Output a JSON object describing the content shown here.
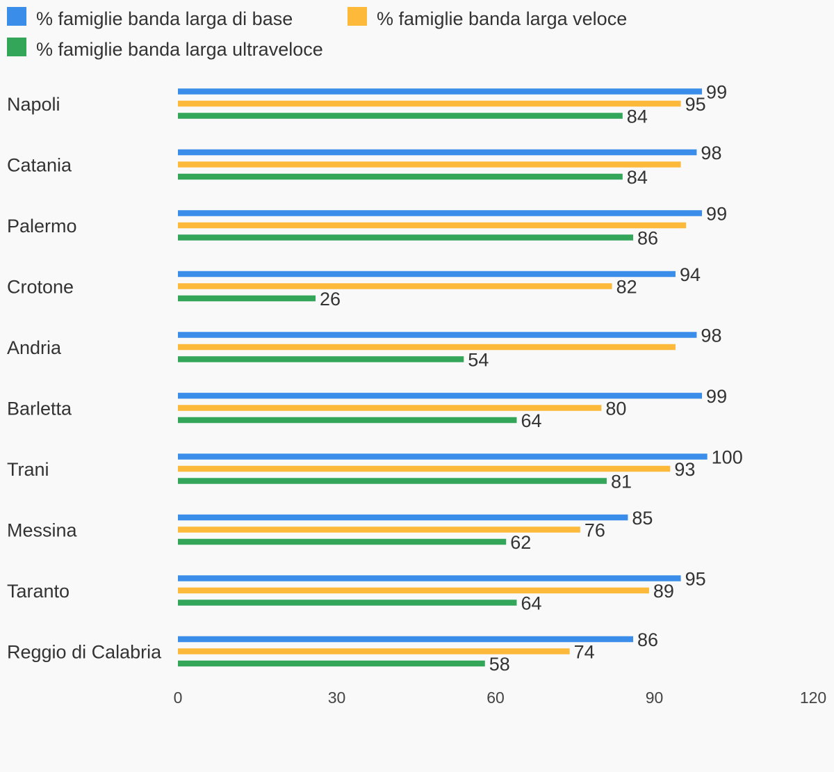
{
  "chart_data": {
    "type": "bar",
    "orientation": "horizontal",
    "title": "",
    "xlabel": "",
    "ylabel": "",
    "categories": [
      "Napoli",
      "Catania",
      "Palermo",
      "Crotone",
      "Andria",
      "Barletta",
      "Trani",
      "Messina",
      "Taranto",
      "Reggio di Calabria"
    ],
    "series": [
      {
        "name": "% famiglie banda larga di base",
        "color": "#3a8eea",
        "values": [
          99,
          98,
          99,
          94,
          98,
          99,
          100,
          85,
          95,
          86
        ]
      },
      {
        "name": "% famiglie banda larga veloce",
        "color": "#fdb93a",
        "values": [
          95,
          95,
          96,
          82,
          94,
          80,
          93,
          76,
          89,
          74
        ]
      },
      {
        "name": "% famiglie banda larga ultraveloce",
        "color": "#33a65a",
        "values": [
          84,
          84,
          86,
          26,
          54,
          64,
          81,
          62,
          64,
          58
        ]
      }
    ],
    "data_labels": [
      [
        "99",
        "95",
        "84"
      ],
      [
        "98",
        "",
        "84"
      ],
      [
        "99",
        "",
        "86"
      ],
      [
        "94",
        "82",
        "26"
      ],
      [
        "98",
        "",
        "54"
      ],
      [
        "99",
        "80",
        "64"
      ],
      [
        "100",
        "93",
        "81"
      ],
      [
        "85",
        "76",
        "62"
      ],
      [
        "95",
        "89",
        "64"
      ],
      [
        "86",
        "74",
        "58"
      ]
    ],
    "xlim": [
      0,
      120
    ],
    "xticks": [
      "0",
      "30",
      "60",
      "90",
      "120"
    ],
    "grid": false,
    "legend_position": "top"
  }
}
